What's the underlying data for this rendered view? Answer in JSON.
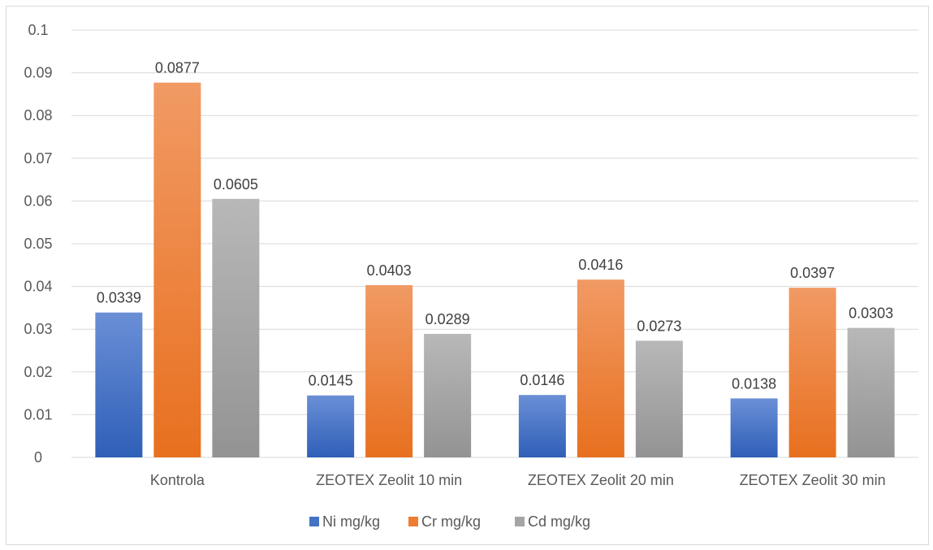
{
  "chart_data": {
    "type": "bar",
    "categories": [
      "Kontrola",
      "ZEOTEX Zeolit 10 min",
      "ZEOTEX Zeolit 20 min",
      "ZEOTEX Zeolit 30 min"
    ],
    "series": [
      {
        "name": "Ni mg/kg",
        "values": [
          0.0339,
          0.0145,
          0.0146,
          0.0138
        ],
        "color": "#4472c4"
      },
      {
        "name": "Cr mg/kg",
        "values": [
          0.0877,
          0.0403,
          0.0416,
          0.0397
        ],
        "color": "#ed7d31"
      },
      {
        "name": "Cd mg/kg",
        "values": [
          0.0605,
          0.0289,
          0.0273,
          0.0303
        ],
        "color": "#a5a5a5"
      }
    ],
    "data_labels": [
      [
        "0.0339",
        "0.0145",
        "0.0146",
        "0.0138"
      ],
      [
        "0.0877",
        "0.0403",
        "0.0416",
        "0.0397"
      ],
      [
        "0.0605",
        "0.0289",
        "0.0273",
        "0.0303"
      ]
    ],
    "ylim": [
      0,
      0.1
    ],
    "yticks": [
      "0",
      "0.01",
      "0.02",
      "0.03",
      "0.04",
      "0.05",
      "0.06",
      "0.07",
      "0.08",
      "0.09",
      "0.1"
    ],
    "grid": true,
    "legend_position": "bottom",
    "title": "",
    "xlabel": "",
    "ylabel": ""
  }
}
